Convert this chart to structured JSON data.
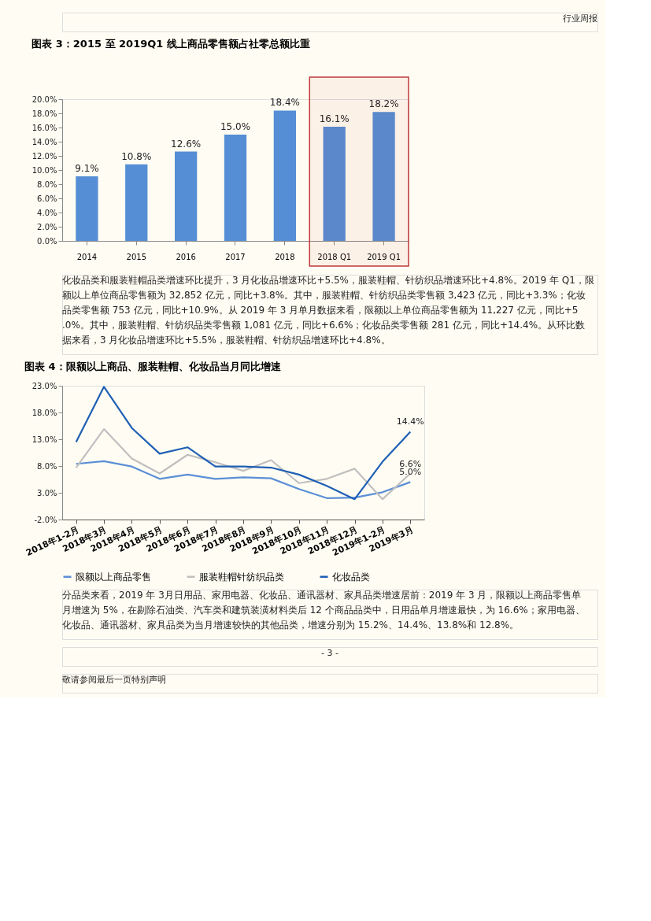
{
  "chart_data": [
    {
      "type": "bar",
      "title": "图表 3：2015 至 2019Q1 线上商品零售额占社零总额比重",
      "categories": [
        "2014",
        "2015",
        "2016",
        "2017",
        "2018",
        "2018 Q1",
        "2019 Q1"
      ],
      "values": [
        9.1,
        10.8,
        12.6,
        15.0,
        18.4,
        16.1,
        18.2
      ],
      "value_labels": [
        "9.1%",
        "10.8%",
        "12.6%",
        "15.0%",
        "18.4%",
        "16.1%",
        "18.2%"
      ],
      "color": "#558ed5",
      "ylim": [
        0,
        20
      ],
      "yticks": [
        {
          "value": 0,
          "label": "0.0%"
        },
        {
          "value": 2,
          "label": "2.0%"
        },
        {
          "value": 4,
          "label": "4.0%"
        },
        {
          "value": 6,
          "label": "6.0%"
        },
        {
          "value": 8,
          "label": "8.0%"
        },
        {
          "value": 10,
          "label": "10.0%"
        },
        {
          "value": 12,
          "label": "12.0%"
        },
        {
          "value": 14,
          "label": "14.0%"
        },
        {
          "value": 16,
          "label": "16.0%"
        },
        {
          "value": 18,
          "label": "18.0%"
        },
        {
          "value": 20,
          "label": "20.0%"
        }
      ],
      "bands": [
        {
          "axis": "x",
          "from": "2018 Q1",
          "to": "2019 Q1",
          "color": "#c0393b"
        }
      ],
      "grid": false,
      "annotations": [
        "行业周报",
        "化妆品类和服装鞋帽品类增速环比提升，3 月化妆品增速环比+5.5%，服装鞋帽、针纺织品增速环比+4.8%。2019 年 Q1，限额以上单位商品零售额为 32,852 亿元，同比+3.8%。其中，服装鞋帽、针纺织品类零售额 3,423 亿元，同比+3.3%；化妆品类零售额 753 亿元，同比+10.9%。从 2019 年 3 月单月数据来看，限额以上单位商品零售额为 11,227 亿元，同比+5.0%。其中，服装鞋帽、针纺织品类零售额 1,081 亿元，同比+6.6%；化妆品类零售额 281 亿元，同比+14.4%。从环比数据来看，3 月化妆品增速环比+5.5%，服装鞋帽、针纺织品增速环比+4.8%。"
      ]
    },
    {
      "type": "line",
      "title": "图表 4：限额以上商品、服装鞋帽、化妆品当月同比增速",
      "categories": [
        "2018年1-2月",
        "2018年3月",
        "2018年4月",
        "2018年5月",
        "2018年6月",
        "2018年7月",
        "2018年8月",
        "2018年9月",
        "2018年10月",
        "2018年11月",
        "2018年12月",
        "2019年1-2月",
        "2019年3月"
      ],
      "series": [
        {
          "name": "限额以上商品零售",
          "color": "#5b8fd6",
          "values": [
            8.4,
            8.9,
            7.9,
            5.6,
            6.4,
            5.6,
            5.9,
            5.7,
            3.7,
            2.0,
            2.1,
            3.1,
            5.0
          ],
          "value_labels": [
            null,
            null,
            null,
            null,
            null,
            null,
            null,
            null,
            null,
            null,
            null,
            null,
            "5.0%"
          ]
        },
        {
          "name": "服装鞋帽针纺织品类",
          "color": "#bfbfbf",
          "values": [
            7.7,
            14.9,
            9.4,
            6.6,
            10.1,
            8.7,
            7.1,
            9.1,
            4.8,
            5.6,
            7.5,
            1.8,
            6.6
          ],
          "value_labels": [
            null,
            null,
            null,
            null,
            null,
            null,
            null,
            null,
            null,
            null,
            null,
            null,
            "6.6%"
          ]
        },
        {
          "name": "化妆品类",
          "color": "#1f5fb4",
          "values": [
            12.5,
            22.8,
            15.1,
            10.3,
            11.5,
            7.9,
            7.9,
            7.7,
            6.4,
            4.3,
            1.8,
            8.8,
            14.4
          ],
          "value_labels": [
            null,
            null,
            null,
            null,
            null,
            null,
            null,
            null,
            null,
            null,
            null,
            null,
            "14.4%"
          ]
        }
      ],
      "ylim": [
        -2,
        23
      ],
      "yticks": [
        {
          "value": -2,
          "label": "-2.0%"
        },
        {
          "value": 3,
          "label": "3.0%"
        },
        {
          "value": 8,
          "label": "8.0%"
        },
        {
          "value": 13,
          "label": "13.0%"
        },
        {
          "value": 18,
          "label": "18.0%"
        },
        {
          "value": 23,
          "label": "23.0%"
        }
      ],
      "legend": "bottom",
      "grid": false,
      "marker": "none",
      "line_style": "solid",
      "annotations": [
        "分品类来看，2019 年 3月日用品、家用电器、化妆品、通讯器材、家具品类增速居前：2019 年 3 月，限额以上商品零售单月增速为 5%，在剔除石油类、汽车类和建筑装潢材料类后 12 个商品品类中，日用品单月增速最快，为 16.6%；家用电器、化妆品、通讯器材、家具品类为当月增速较快的其他品类，增速分别为 15.2%、14.4%、13.8%和 12.8%。",
        "- 3 -",
        "敬请参阅最后一页特别声明"
      ]
    }
  ]
}
